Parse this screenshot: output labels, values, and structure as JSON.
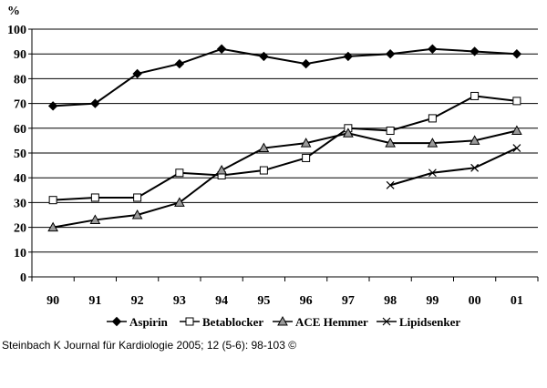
{
  "chart_data": {
    "type": "line",
    "y_unit": "%",
    "categories": [
      "90",
      "91",
      "92",
      "93",
      "94",
      "95",
      "96",
      "97",
      "98",
      "99",
      "00",
      "01"
    ],
    "ylim": [
      0,
      100
    ],
    "yticks": [
      0,
      10,
      20,
      30,
      40,
      50,
      60,
      70,
      80,
      90,
      100
    ],
    "grid": true,
    "legend_position": "bottom",
    "series": [
      {
        "name": "Aspirin",
        "marker": "diamond",
        "values": [
          69,
          70,
          82,
          86,
          92,
          89,
          86,
          89,
          90,
          92,
          91,
          90
        ]
      },
      {
        "name": "Betablocker",
        "marker": "square",
        "values": [
          31,
          32,
          32,
          42,
          41,
          43,
          48,
          60,
          59,
          64,
          73,
          71
        ]
      },
      {
        "name": "ACE Hemmer",
        "marker": "triangle",
        "values": [
          20,
          23,
          25,
          30,
          43,
          52,
          54,
          58,
          54,
          54,
          55,
          59
        ]
      },
      {
        "name": "Lipidsenker",
        "marker": "x",
        "values": [
          null,
          null,
          null,
          null,
          null,
          null,
          null,
          null,
          37,
          42,
          44,
          52
        ]
      }
    ]
  },
  "citation": "Steinbach K Journal für Kardiologie 2005; 12 (5-6): 98-103 ©"
}
